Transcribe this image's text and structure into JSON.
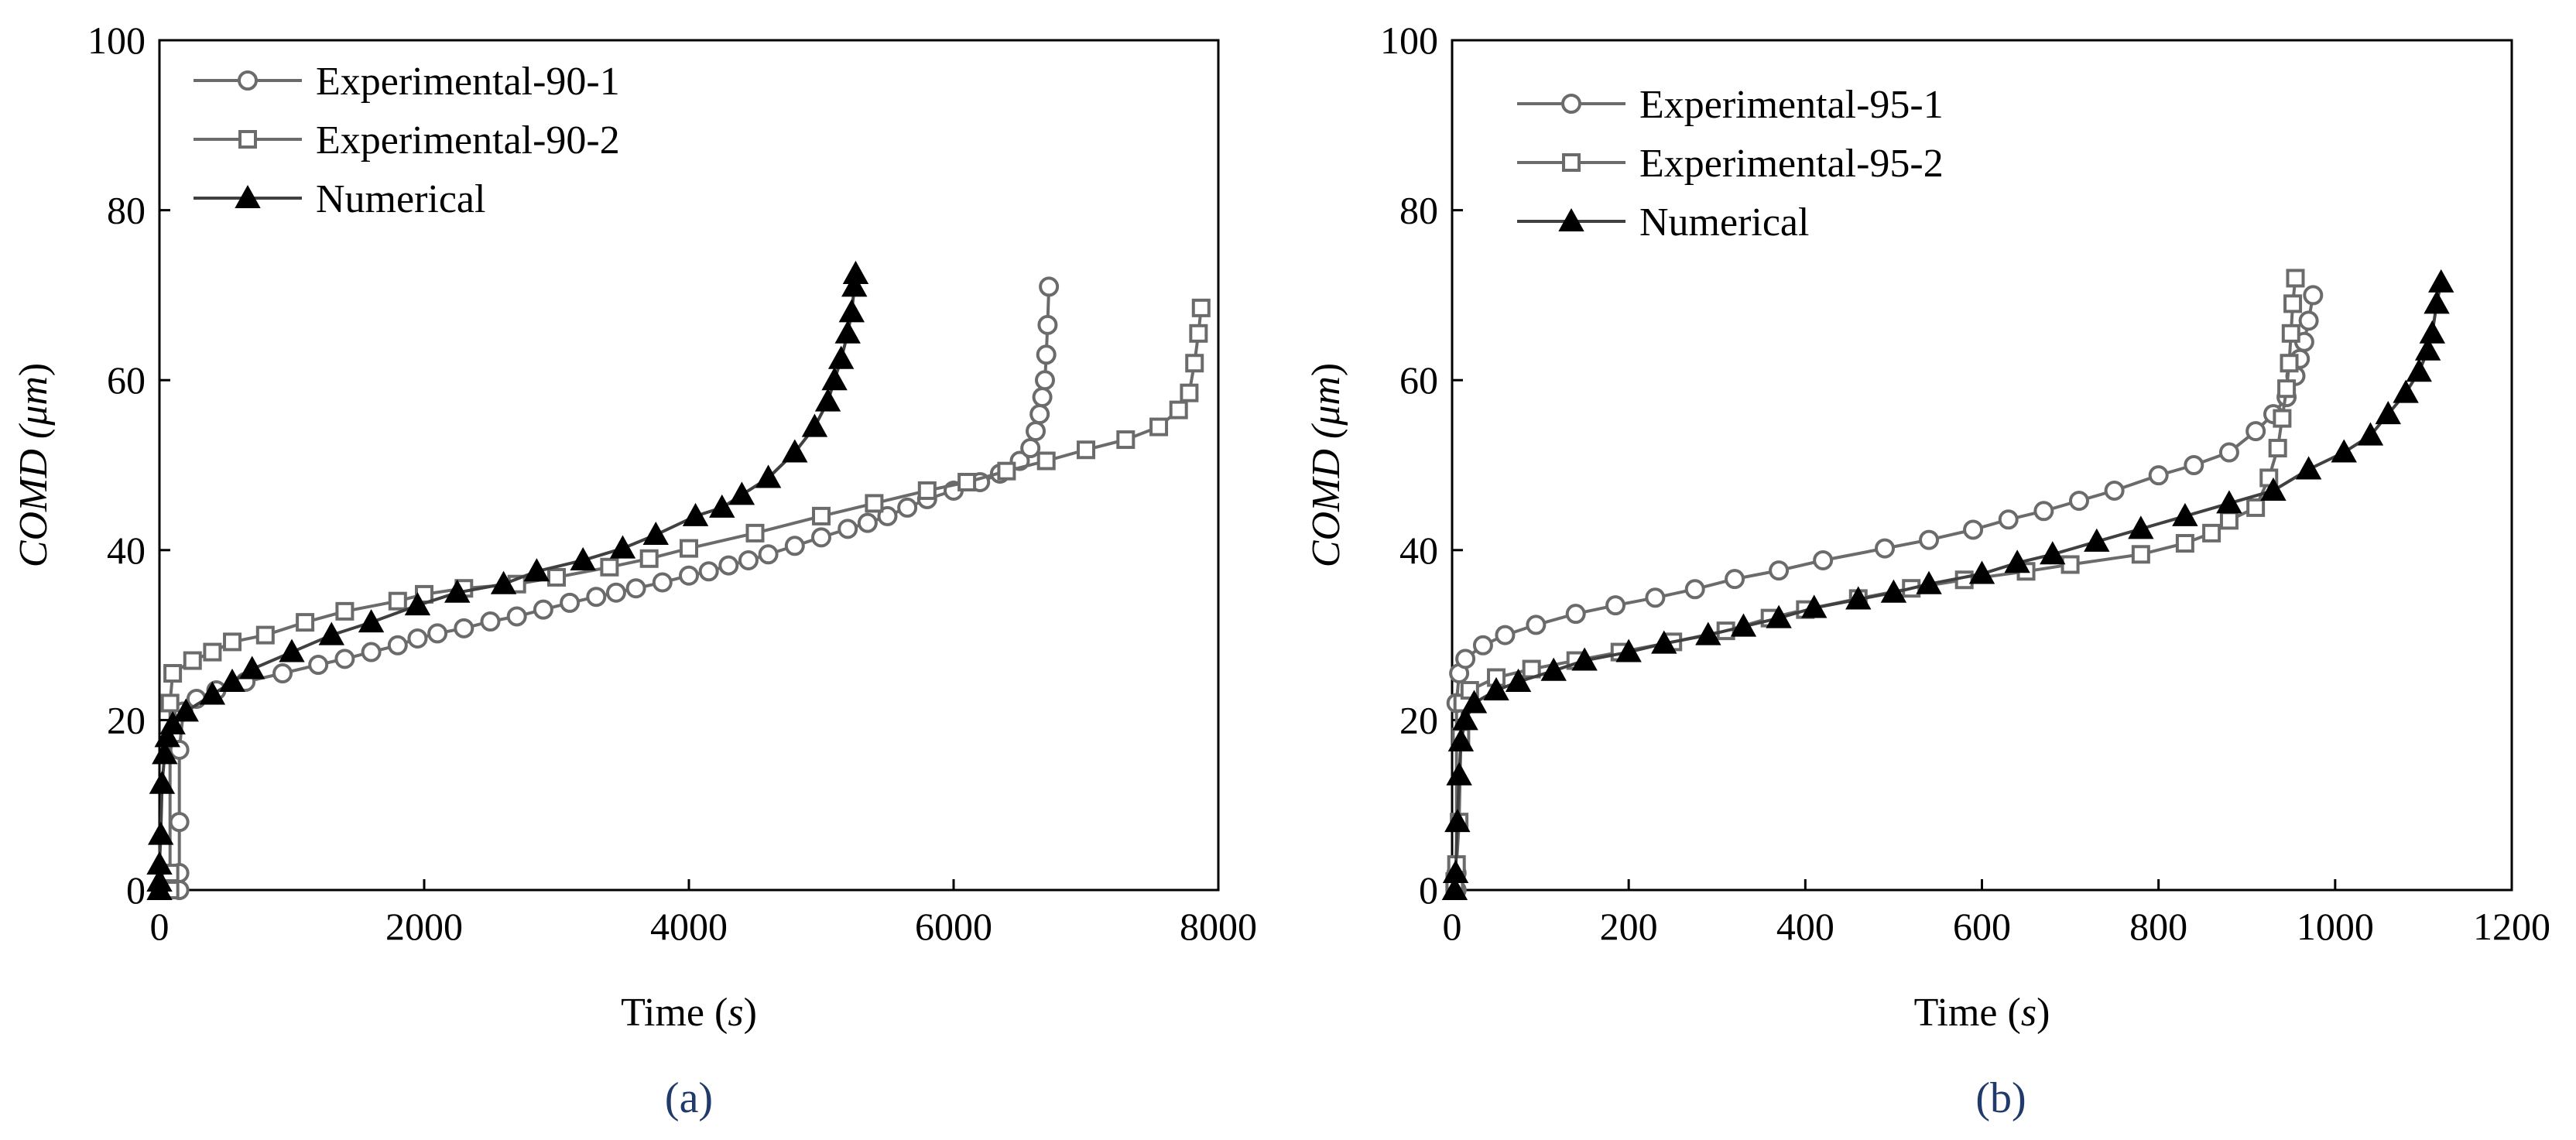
{
  "chart_data": [
    {
      "type": "line",
      "panel_label": "(a)",
      "xlabel": {
        "main": "Time (",
        "unit": "s",
        "close": ")"
      },
      "ylabel": {
        "main": "COMD (",
        "unit": "μm",
        "close": ")"
      },
      "xlim": [
        0,
        8000
      ],
      "ylim": [
        0,
        100
      ],
      "xticks": [
        0,
        2000,
        4000,
        6000,
        8000
      ],
      "yticks": [
        0,
        20,
        40,
        60,
        80,
        100
      ],
      "legend_position": "top-left",
      "series": [
        {
          "name": "Experimental-90-1",
          "marker": "circle-open",
          "color": "#707070",
          "points": [
            [
              150,
              0
            ],
            [
              150,
              2
            ],
            [
              150,
              8
            ],
            [
              150,
              16.5
            ],
            [
              180,
              21
            ],
            [
              280,
              22.5
            ],
            [
              430,
              23.5
            ],
            [
              650,
              24.5
            ],
            [
              930,
              25.5
            ],
            [
              1200,
              26.5
            ],
            [
              1400,
              27.2
            ],
            [
              1600,
              28
            ],
            [
              1800,
              28.8
            ],
            [
              1950,
              29.6
            ],
            [
              2100,
              30.2
            ],
            [
              2300,
              30.8
            ],
            [
              2500,
              31.6
            ],
            [
              2700,
              32.2
            ],
            [
              2900,
              33
            ],
            [
              3100,
              33.8
            ],
            [
              3300,
              34.5
            ],
            [
              3450,
              35
            ],
            [
              3600,
              35.5
            ],
            [
              3800,
              36.2
            ],
            [
              4000,
              37
            ],
            [
              4150,
              37.5
            ],
            [
              4300,
              38.2
            ],
            [
              4450,
              38.8
            ],
            [
              4600,
              39.5
            ],
            [
              4800,
              40.5
            ],
            [
              5000,
              41.5
            ],
            [
              5200,
              42.5
            ],
            [
              5350,
              43.2
            ],
            [
              5500,
              44
            ],
            [
              5650,
              45
            ],
            [
              5800,
              46
            ],
            [
              6000,
              47
            ],
            [
              6200,
              48
            ],
            [
              6350,
              49
            ],
            [
              6500,
              50.5
            ],
            [
              6580,
              52
            ],
            [
              6620,
              54
            ],
            [
              6650,
              56
            ],
            [
              6670,
              58
            ],
            [
              6690,
              60
            ],
            [
              6700,
              63
            ],
            [
              6710,
              66.5
            ],
            [
              6720,
              71
            ]
          ]
        },
        {
          "name": "Experimental-90-2",
          "marker": "square-open",
          "color": "#707070",
          "points": [
            [
              80,
              0
            ],
            [
              80,
              2
            ],
            [
              80,
              22
            ],
            [
              100,
              25.5
            ],
            [
              250,
              27
            ],
            [
              400,
              28
            ],
            [
              550,
              29.2
            ],
            [
              800,
              30
            ],
            [
              1100,
              31.5
            ],
            [
              1400,
              32.8
            ],
            [
              1800,
              34
            ],
            [
              2000,
              34.8
            ],
            [
              2300,
              35.5
            ],
            [
              2700,
              36
            ],
            [
              3000,
              36.8
            ],
            [
              3400,
              38
            ],
            [
              3700,
              39
            ],
            [
              4000,
              40.2
            ],
            [
              4500,
              42
            ],
            [
              5000,
              44
            ],
            [
              5400,
              45.5
            ],
            [
              5800,
              47
            ],
            [
              6100,
              48
            ],
            [
              6400,
              49.3
            ],
            [
              6700,
              50.5
            ],
            [
              7000,
              51.8
            ],
            [
              7300,
              53
            ],
            [
              7550,
              54.5
            ],
            [
              7700,
              56.5
            ],
            [
              7780,
              58.5
            ],
            [
              7820,
              62
            ],
            [
              7850,
              65.5
            ],
            [
              7870,
              68.5
            ]
          ]
        },
        {
          "name": "Numerical",
          "marker": "triangle-filled",
          "color": "#000000",
          "points": [
            [
              0,
              0
            ],
            [
              0,
              1
            ],
            [
              0,
              3
            ],
            [
              10,
              6.5
            ],
            [
              20,
              12.5
            ],
            [
              40,
              16
            ],
            [
              60,
              18
            ],
            [
              100,
              19.5
            ],
            [
              200,
              21
            ],
            [
              400,
              23
            ],
            [
              550,
              24.5
            ],
            [
              700,
              26
            ],
            [
              1000,
              28
            ],
            [
              1300,
              30
            ],
            [
              1600,
              31.5
            ],
            [
              1950,
              33.5
            ],
            [
              2250,
              35
            ],
            [
              2600,
              36
            ],
            [
              2850,
              37.5
            ],
            [
              3200,
              38.8
            ],
            [
              3500,
              40.2
            ],
            [
              3750,
              41.8
            ],
            [
              4050,
              44
            ],
            [
              4250,
              45
            ],
            [
              4400,
              46.5
            ],
            [
              4600,
              48.5
            ],
            [
              4800,
              51.5
            ],
            [
              4950,
              54.5
            ],
            [
              5050,
              57.5
            ],
            [
              5100,
              60
            ],
            [
              5150,
              62.5
            ],
            [
              5200,
              65.5
            ],
            [
              5230,
              68
            ],
            [
              5250,
              71
            ],
            [
              5260,
              72.5
            ]
          ]
        }
      ]
    },
    {
      "type": "line",
      "panel_label": "(b)",
      "xlabel": {
        "main": "Time (",
        "unit": "s",
        "close": ")"
      },
      "ylabel": {
        "main": "COMD (",
        "unit": "μm",
        "close": ")"
      },
      "xlim": [
        0,
        1200
      ],
      "ylim": [
        0,
        100
      ],
      "xticks": [
        0,
        200,
        400,
        600,
        800,
        1000,
        1200
      ],
      "yticks": [
        0,
        20,
        40,
        60,
        80,
        100
      ],
      "legend_position": "top-left",
      "series": [
        {
          "name": "Experimental-95-1",
          "marker": "circle-open",
          "color": "#707070",
          "points": [
            [
              5,
              0
            ],
            [
              5,
              2
            ],
            [
              5,
              22
            ],
            [
              8,
              25.5
            ],
            [
              15,
              27.2
            ],
            [
              35,
              28.8
            ],
            [
              60,
              30
            ],
            [
              95,
              31.2
            ],
            [
              140,
              32.5
            ],
            [
              185,
              33.5
            ],
            [
              230,
              34.4
            ],
            [
              275,
              35.4
            ],
            [
              320,
              36.6
            ],
            [
              370,
              37.6
            ],
            [
              420,
              38.8
            ],
            [
              490,
              40.2
            ],
            [
              540,
              41.2
            ],
            [
              590,
              42.4
            ],
            [
              630,
              43.6
            ],
            [
              670,
              44.6
            ],
            [
              710,
              45.8
            ],
            [
              750,
              47
            ],
            [
              800,
              48.8
            ],
            [
              840,
              50
            ],
            [
              880,
              51.5
            ],
            [
              910,
              54
            ],
            [
              930,
              56
            ],
            [
              945,
              58
            ],
            [
              955,
              60.5
            ],
            [
              960,
              62.5
            ],
            [
              965,
              64.5
            ],
            [
              970,
              67
            ],
            [
              975,
              70
            ]
          ]
        },
        {
          "name": "Experimental-95-2",
          "marker": "square-open",
          "color": "#707070",
          "points": [
            [
              3,
              0
            ],
            [
              3,
              1
            ],
            [
              5,
              3
            ],
            [
              8,
              8
            ],
            [
              10,
              18
            ],
            [
              12,
              22
            ],
            [
              20,
              23.5
            ],
            [
              50,
              25
            ],
            [
              90,
              26
            ],
            [
              140,
              27
            ],
            [
              190,
              28
            ],
            [
              250,
              29.2
            ],
            [
              310,
              30.5
            ],
            [
              360,
              32
            ],
            [
              400,
              33
            ],
            [
              460,
              34.3
            ],
            [
              520,
              35.5
            ],
            [
              580,
              36.5
            ],
            [
              650,
              37.5
            ],
            [
              700,
              38.3
            ],
            [
              780,
              39.5
            ],
            [
              830,
              40.8
            ],
            [
              860,
              42
            ],
            [
              880,
              43.5
            ],
            [
              910,
              45
            ],
            [
              925,
              48.5
            ],
            [
              935,
              52
            ],
            [
              940,
              55.5
            ],
            [
              945,
              59
            ],
            [
              948,
              62
            ],
            [
              950,
              65.5
            ],
            [
              952,
              69
            ],
            [
              955,
              72
            ]
          ]
        },
        {
          "name": "Numerical",
          "marker": "triangle-filled",
          "color": "#000000",
          "points": [
            [
              3,
              0
            ],
            [
              4,
              2
            ],
            [
              6,
              8
            ],
            [
              8,
              13.5
            ],
            [
              10,
              17.5
            ],
            [
              15,
              20
            ],
            [
              25,
              22
            ],
            [
              50,
              23.5
            ],
            [
              75,
              24.5
            ],
            [
              115,
              25.8
            ],
            [
              150,
              27
            ],
            [
              200,
              28
            ],
            [
              240,
              29
            ],
            [
              290,
              30
            ],
            [
              330,
              31
            ],
            [
              370,
              32
            ],
            [
              410,
              33.2
            ],
            [
              460,
              34.2
            ],
            [
              500,
              35
            ],
            [
              540,
              36
            ],
            [
              600,
              37.2
            ],
            [
              640,
              38.5
            ],
            [
              680,
              39.5
            ],
            [
              730,
              41
            ],
            [
              780,
              42.5
            ],
            [
              830,
              44
            ],
            [
              880,
              45.5
            ],
            [
              930,
              47
            ],
            [
              970,
              49.5
            ],
            [
              1010,
              51.5
            ],
            [
              1040,
              53.5
            ],
            [
              1060,
              56
            ],
            [
              1080,
              58.5
            ],
            [
              1095,
              61
            ],
            [
              1105,
              63.5
            ],
            [
              1110,
              65.5
            ],
            [
              1115,
              69
            ],
            [
              1120,
              71.5
            ]
          ]
        }
      ]
    }
  ]
}
